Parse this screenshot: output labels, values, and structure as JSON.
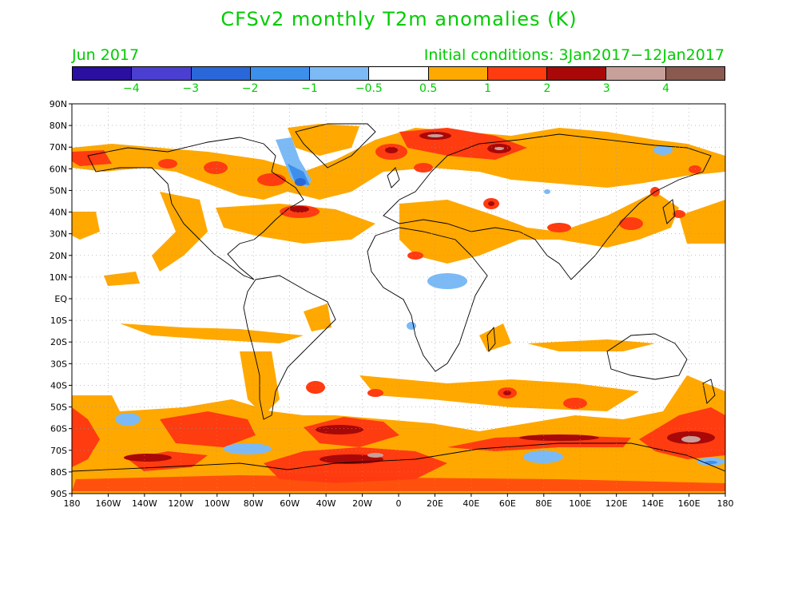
{
  "title": "CFSv2 monthly T2m anomalies (K)",
  "subtitle_left": "Jun 2017",
  "subtitle_right": "Initial conditions: 3Jan2017−12Jan2017",
  "colorbar": {
    "colors": [
      "#2a0fa0",
      "#4a3fd0",
      "#2a67d8",
      "#3c90ec",
      "#7cbaf6",
      "#ffffff",
      "#ffa800",
      "#ff3b10",
      "#a80808",
      "#c8a09a",
      "#8a5a50"
    ],
    "labels": [
      "−4",
      "−3",
      "−2",
      "−1",
      "−0.5",
      "0.5",
      "1",
      "2",
      "3",
      "4"
    ]
  },
  "map": {
    "lat_labels": [
      "90N",
      "80N",
      "70N",
      "60N",
      "50N",
      "40N",
      "30N",
      "20N",
      "10N",
      "EQ",
      "10S",
      "20S",
      "30S",
      "40S",
      "50S",
      "60S",
      "70S",
      "80S",
      "90S"
    ],
    "lon_labels": [
      "180",
      "160W",
      "140W",
      "120W",
      "100W",
      "80W",
      "60W",
      "40W",
      "20W",
      "0",
      "20E",
      "40E",
      "60E",
      "80E",
      "100E",
      "120E",
      "140E",
      "160E",
      "180"
    ]
  },
  "chart_data": {
    "type": "heatmap",
    "title": "CFSv2 monthly T2m anomalies (K)",
    "subtitle": "Jun 2017",
    "initial_conditions": "3Jan2017−12Jan2017",
    "x_range": [
      -180,
      180
    ],
    "y_range": [
      -90,
      90
    ],
    "levels": [
      -4,
      -3,
      -2,
      -1,
      -0.5,
      0.5,
      1,
      2,
      3,
      4
    ],
    "grid": true
  }
}
